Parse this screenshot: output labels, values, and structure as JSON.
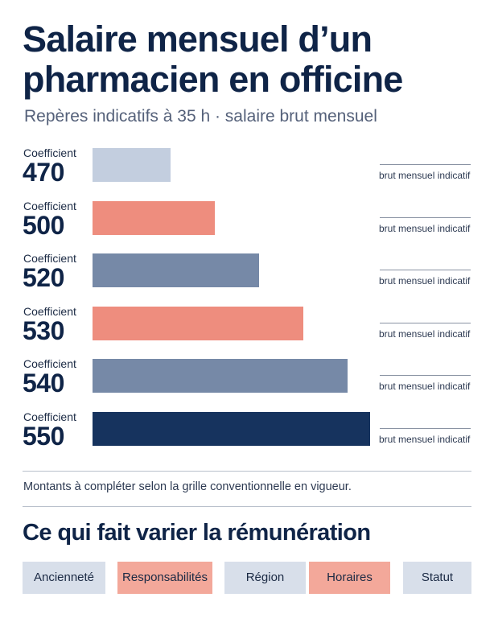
{
  "title": "Salaire mensuel d’un pharmacien en officine",
  "subtitle": "Repères indicatifs à 35 h · salaire brut mensuel",
  "chart_data": {
    "type": "bar",
    "orientation": "horizontal",
    "category_prefix": "Coefficient",
    "categories": [
      "470",
      "500",
      "520",
      "530",
      "540",
      "550"
    ],
    "values": [
      0.28,
      0.44,
      0.6,
      0.76,
      0.92,
      1.0
    ],
    "value_label": "brut mensuel indicatif",
    "colors": [
      "#c3cedf",
      "#ee8d7e",
      "#7689a7",
      "#ee8d7e",
      "#7689a7",
      "#16335e"
    ],
    "grid": false,
    "legend": "none"
  },
  "note": "Montants à compléter selon la grille conventionnelle en vigueur.",
  "factors": {
    "title": "Ce qui fait varier la rémunération",
    "items": [
      {
        "label": "Ancienneté",
        "color": "#d8dfea"
      },
      {
        "label": "Responsabilités",
        "color": "#f3a89a"
      },
      {
        "label": "Région",
        "color": "#d8dfea"
      },
      {
        "label": "Horaires",
        "color": "#f3a89a"
      },
      {
        "label": "Statut",
        "color": "#d8dfea"
      }
    ]
  }
}
